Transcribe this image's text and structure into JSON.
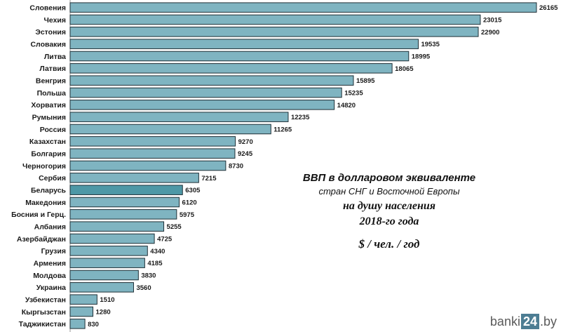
{
  "chart_data": {
    "type": "bar",
    "orientation": "horizontal",
    "categories": [
      "Словения",
      "Чехия",
      "Эстония",
      "Словакия",
      "Литва",
      "Латвия",
      "Венгрия",
      "Польша",
      "Хорватия",
      "Румыния",
      "Россия",
      "Казахстан",
      "Болгария",
      "Черногория",
      "Сербия",
      "Беларусь",
      "Македония",
      "Босния и Герц.",
      "Албания",
      "Азербайджан",
      "Грузия",
      "Армения",
      "Молдова",
      "Украина",
      "Узбекистан",
      "Кыргызстан",
      "Таджикистан"
    ],
    "values": [
      26165,
      23015,
      22900,
      19535,
      18995,
      18065,
      15895,
      15235,
      14820,
      12235,
      11265,
      9270,
      9245,
      8730,
      7215,
      6305,
      6120,
      5975,
      5255,
      4725,
      4340,
      4185,
      3830,
      3560,
      1510,
      1280,
      830
    ],
    "highlight": "Беларусь",
    "xlim": [
      0,
      26165
    ],
    "grid": false,
    "colors": {
      "bar": "#7fb4c1",
      "highlight": "#4e98a6",
      "stroke": "#1f2f36"
    }
  },
  "title": {
    "line1": "ВВП в долларовом эквиваленте",
    "line2": "стран СНГ и Восточной Европы",
    "line3": "на душу населения",
    "line4": "2018-го года",
    "units": "$ / чел. / год"
  },
  "brand": {
    "pre": "banki",
    "box": "24",
    "post": ".by"
  }
}
